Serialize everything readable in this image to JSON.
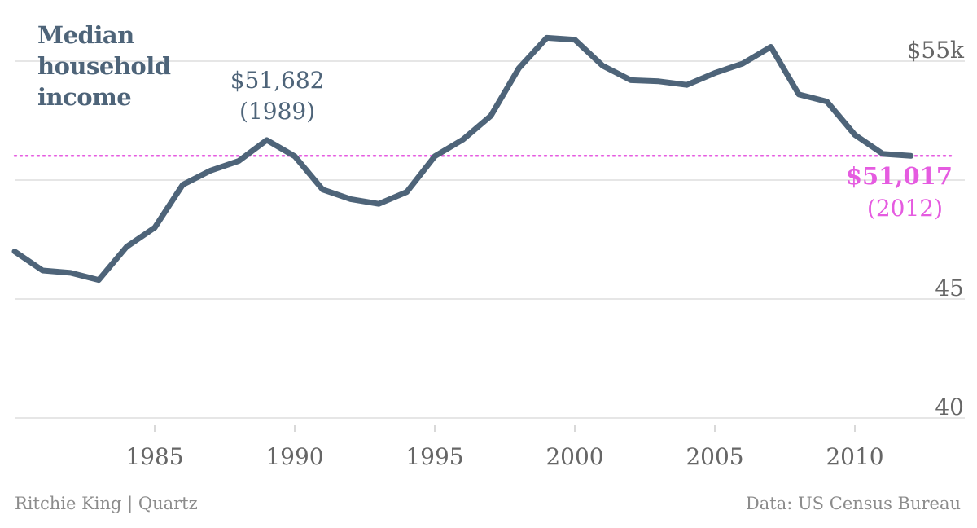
{
  "title": "Median household income",
  "credit": "Ritchie King | Quartz",
  "source": "Data: US Census Bureau",
  "colors": {
    "line": "#4e6479",
    "reference": "#e55be0",
    "grid": "#dddddd",
    "tick_text": "#666666"
  },
  "chart_data": {
    "type": "line",
    "title": "Median household income",
    "x": [
      1980,
      1981,
      1982,
      1983,
      1984,
      1985,
      1986,
      1987,
      1988,
      1989,
      1990,
      1991,
      1992,
      1993,
      1994,
      1995,
      1996,
      1997,
      1998,
      1999,
      2000,
      2001,
      2002,
      2003,
      2004,
      2005,
      2006,
      2007,
      2008,
      2009,
      2010,
      2011,
      2012
    ],
    "series": [
      {
        "values": [
          47.0,
          46.2,
          46.1,
          45.8,
          47.2,
          48.0,
          49.8,
          50.4,
          50.8,
          51.682,
          51.0,
          49.6,
          49.2,
          49.0,
          49.5,
          51.0,
          51.7,
          52.7,
          54.7,
          55.98,
          55.9,
          54.8,
          54.2,
          54.15,
          54.0,
          54.5,
          54.9,
          55.6,
          53.6,
          53.3,
          51.9,
          51.1,
          51.017
        ]
      }
    ],
    "reference_line": {
      "value": 51.017
    },
    "annotations": [
      {
        "x": 1989,
        "value_label": "$51,682",
        "year_label": "(1989)"
      },
      {
        "x": 2012,
        "value_label": "$51,017",
        "year_label": "(2012)"
      }
    ],
    "xticks": [
      1985,
      1990,
      1995,
      2000,
      2005,
      2010
    ],
    "yticks": [
      {
        "value": 40,
        "label": "40"
      },
      {
        "value": 45,
        "label": "45"
      },
      {
        "value": 50,
        "label": ""
      },
      {
        "value": 55,
        "label": "$55k"
      }
    ],
    "xlim": [
      1980,
      2012
    ],
    "ylim": [
      40,
      56.5
    ],
    "grid": true
  }
}
